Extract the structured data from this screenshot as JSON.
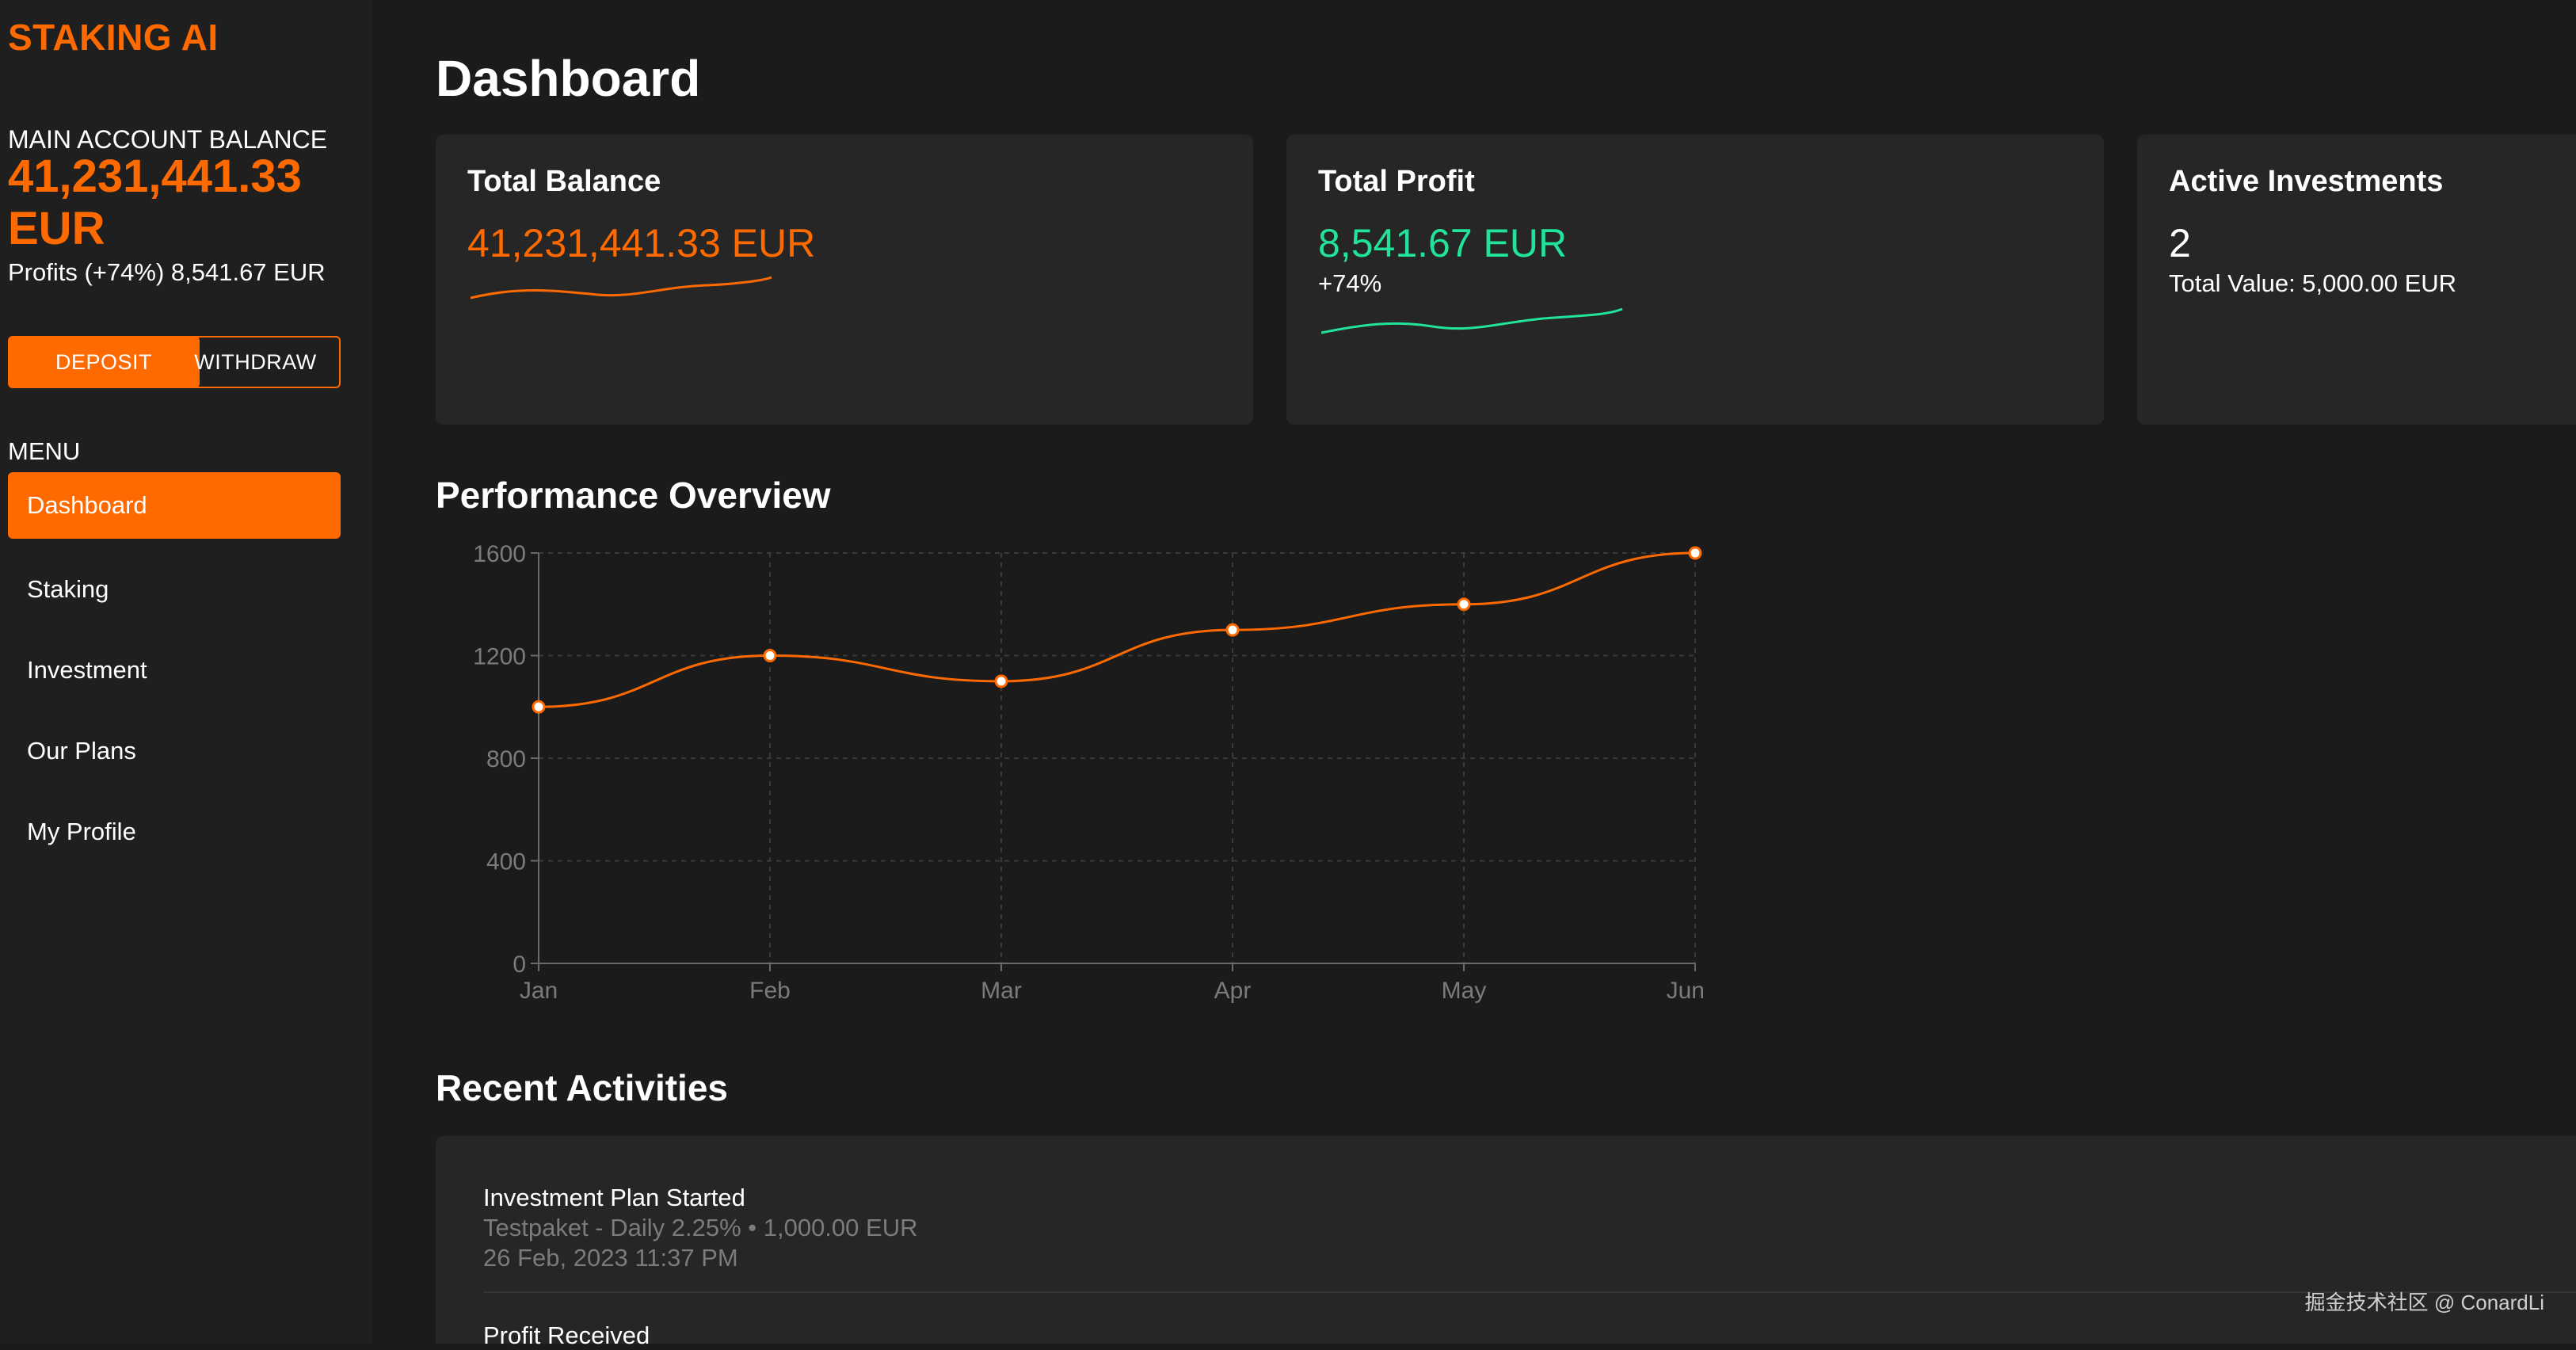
{
  "sidebar": {
    "brand": "STAKING AI",
    "balance_label": "MAIN ACCOUNT BALANCE",
    "balance_amount": "41,231,441.33 EUR",
    "profits": "Profits (+74%) 8,541.67 EUR",
    "deposit_label": "DEPOSIT",
    "withdraw_label": "WITHDRAW",
    "menu_label": "MENU",
    "items": [
      {
        "label": "Dashboard",
        "active": true
      },
      {
        "label": "Staking",
        "active": false
      },
      {
        "label": "Investment",
        "active": false
      },
      {
        "label": "Our Plans",
        "active": false
      },
      {
        "label": "My Profile",
        "active": false
      }
    ]
  },
  "main": {
    "title": "Dashboard",
    "cards": [
      {
        "title": "Total Balance",
        "value": "41,231,441.33 EUR",
        "value_color": "#ff6a00",
        "sub": "",
        "sparkline_color": "#ff6a00"
      },
      {
        "title": "Total Profit",
        "value": "8,541.67 EUR",
        "value_color": "#21e39a",
        "sub": "+74%",
        "sparkline_color": "#21e39a"
      },
      {
        "title": "Active Investments",
        "value": "2",
        "value_color": "#ffffff",
        "sub": "Total Value: 5,000.00 EUR"
      }
    ],
    "performance_title": "Performance Overview",
    "activities_title": "Recent Activities",
    "activities": [
      {
        "title": "Investment Plan Started",
        "detail": "Testpaket - Daily 2.25% • 1,000.00 EUR",
        "date": "26 Feb, 2023 11:37 PM"
      },
      {
        "title": "Profit Received",
        "detail": "",
        "date": ""
      }
    ]
  },
  "chart_data": {
    "type": "line",
    "categories": [
      "Jan",
      "Feb",
      "Mar",
      "Apr",
      "May",
      "Jun"
    ],
    "values": [
      1000,
      1200,
      1100,
      1300,
      1400,
      1600
    ],
    "yticks": [
      0,
      400,
      800,
      1200,
      1600
    ],
    "ylim": [
      0,
      1600
    ],
    "grid": true,
    "line_color": "#ff6a00"
  },
  "watermark": "掘金技术社区 @ ConardLi"
}
